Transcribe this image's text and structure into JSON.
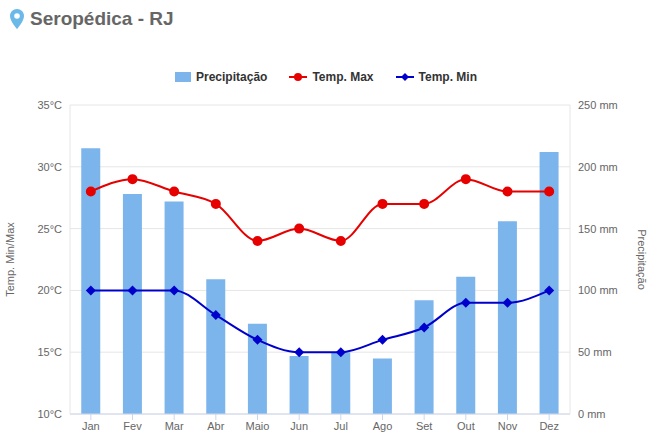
{
  "chart_data": {
    "type": "combo",
    "title": "Seropédica - RJ",
    "categories": [
      "Jan",
      "Fev",
      "Mar",
      "Abr",
      "Maio",
      "Jun",
      "Jul",
      "Ago",
      "Set",
      "Out",
      "Nov",
      "Dez"
    ],
    "series": [
      {
        "name": "Precipitação",
        "type": "bar",
        "color": "#7cb5ec",
        "axis": "y2",
        "values": [
          215,
          178,
          172,
          109,
          73,
          47,
          50,
          45,
          92,
          111,
          156,
          212
        ]
      },
      {
        "name": "Temp. Max",
        "type": "line",
        "color": "#e60000",
        "marker": "circle",
        "values": [
          28,
          29,
          28,
          27,
          24,
          25,
          24,
          27,
          27,
          29,
          28,
          28
        ]
      },
      {
        "name": "Temp. Min",
        "type": "line",
        "color": "#0000cc",
        "marker": "diamond",
        "values": [
          20,
          20,
          20,
          18,
          16,
          15,
          15,
          16,
          17,
          19,
          19,
          20
        ]
      }
    ],
    "y_label": "Temp. Min/Max",
    "y2_label": "Precipitação",
    "ylim": [
      10,
      35
    ],
    "yticks": [
      {
        "value": 10,
        "label": "10°C"
      },
      {
        "value": 15,
        "label": "15°C"
      },
      {
        "value": 20,
        "label": "20°C"
      },
      {
        "value": 25,
        "label": "25°C"
      },
      {
        "value": 30,
        "label": "30°C"
      },
      {
        "value": 35,
        "label": "35°C"
      }
    ],
    "y2lim": [
      0,
      250
    ],
    "y2ticks": [
      {
        "value": 0,
        "label": "0 mm"
      },
      {
        "value": 50,
        "label": "50 mm"
      },
      {
        "value": 100,
        "label": "100 mm"
      },
      {
        "value": 150,
        "label": "150 mm"
      },
      {
        "value": 200,
        "label": "200 mm"
      },
      {
        "value": 250,
        "label": "250 mm"
      }
    ],
    "grid": true,
    "legend": "top"
  }
}
